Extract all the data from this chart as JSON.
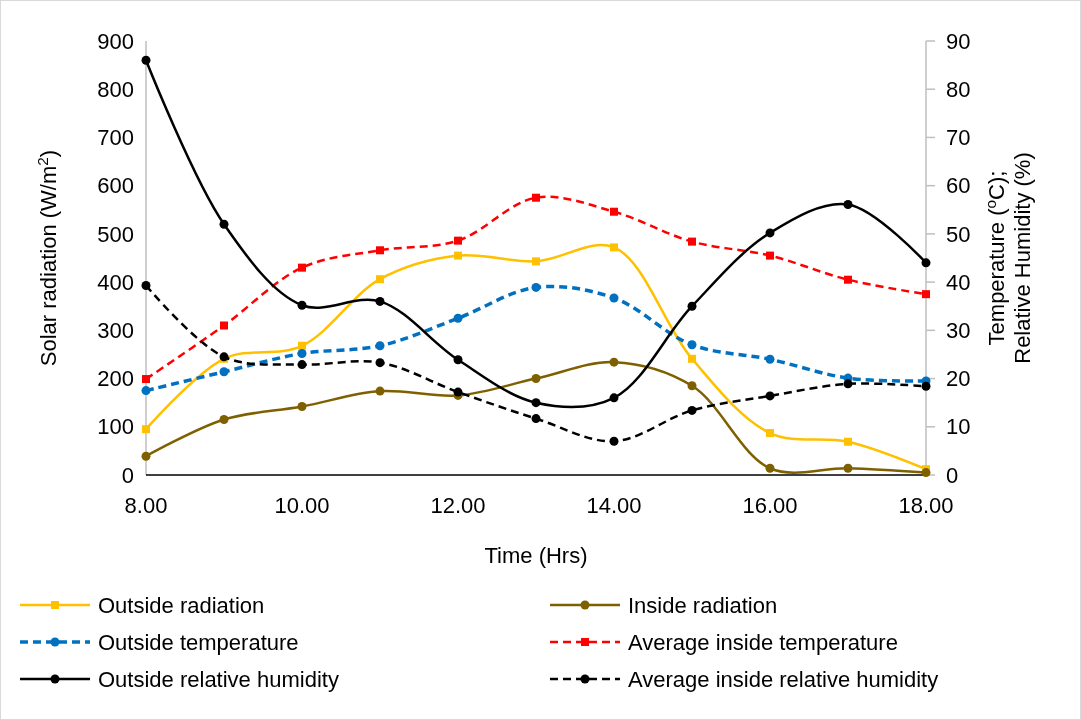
{
  "chart_data": {
    "type": "line",
    "xlabel": "Time (Hrs)",
    "ylabel": "Solar radiation (W/m$^{2}$)",
    "y2label": "Temperature ($^{o}$C); Relative Humidity (%)",
    "x": [
      8,
      9,
      10,
      11,
      12,
      13,
      14,
      15,
      16,
      17,
      18
    ],
    "xlim": [
      8,
      18
    ],
    "xticks": [
      {
        "value": 8,
        "label": "8.00"
      },
      {
        "value": 10,
        "label": "10.00"
      },
      {
        "value": 12,
        "label": "12.00"
      },
      {
        "value": 14,
        "label": "14.00"
      },
      {
        "value": 16,
        "label": "16.00"
      },
      {
        "value": 18,
        "label": "18.00"
      }
    ],
    "ylim": [
      0,
      900
    ],
    "yticks": [
      0,
      100,
      200,
      300,
      400,
      500,
      600,
      700,
      800,
      900
    ],
    "y2lim": [
      0,
      90
    ],
    "y2ticks": [
      0,
      10,
      20,
      30,
      40,
      50,
      60,
      70,
      80,
      90
    ],
    "legend": "bottom",
    "grid": false,
    "series": [
      {
        "name": "Outside radiation",
        "color": "#ffc000",
        "marker": "square",
        "line_style": "solid",
        "values": [
          95,
          241,
          268,
          406,
          455,
          443,
          472,
          241,
          87,
          69,
          12
        ]
      },
      {
        "name": "Inside radiation",
        "color": "#7f6000",
        "marker": "circle",
        "line_style": "solid",
        "values": [
          39,
          115,
          142,
          174,
          165,
          200,
          234,
          185,
          14,
          14,
          5
        ]
      },
      {
        "name": "Outside temperature",
        "color": "#0070c0",
        "marker": "circle",
        "line_style": "dashed",
        "axis": "y2",
        "values": [
          17.5,
          21.4,
          25.2,
          26.8,
          32.5,
          38.9,
          36.7,
          27.0,
          24.0,
          20.1,
          19.5
        ]
      },
      {
        "name": "Average inside temperature",
        "color": "#ff0000",
        "marker": "square",
        "line_style": "dashed",
        "axis": "y2",
        "values": [
          19.9,
          31.0,
          43.0,
          46.6,
          48.6,
          57.5,
          54.6,
          48.4,
          45.5,
          40.5,
          37.5
        ]
      },
      {
        "name": "Outside relative humidity",
        "color": "#000000",
        "marker": "circle",
        "line_style": "solid",
        "axis": "y2",
        "values": [
          86.0,
          52.0,
          35.2,
          36.0,
          23.9,
          15.0,
          16.0,
          35.0,
          50.2,
          56.1,
          44.0
        ]
      },
      {
        "name": "Average inside relative humidity",
        "color": "#000000",
        "marker": "circle",
        "line_style": "dashed",
        "axis": "y2",
        "values": [
          39.3,
          24.5,
          22.9,
          23.3,
          17.2,
          11.7,
          7.0,
          13.4,
          16.4,
          18.9,
          18.4
        ]
      }
    ]
  }
}
